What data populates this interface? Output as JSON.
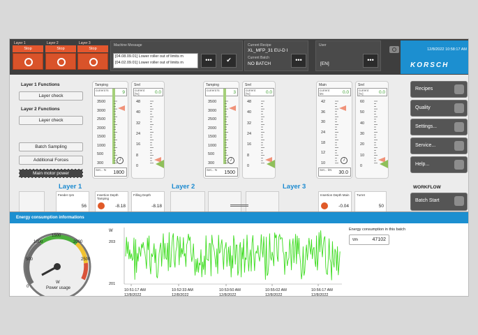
{
  "header": {
    "layers": [
      {
        "label": "Layer 1",
        "stop": "Stop"
      },
      {
        "label": "Layer 2",
        "stop": "Stop"
      },
      {
        "label": "Layer 3",
        "stop": "Stop"
      }
    ],
    "machine_message": {
      "caption": "Machine Message",
      "lines": [
        "[04.08.09.01] Lower roller out of limits m",
        "[04.02.09.01] Lower roller out of limits m"
      ]
    },
    "more_label": "•••",
    "ack_label": "✔",
    "recipe": {
      "caption": "Current Recipe",
      "value": "XL_MFP_31 EU-D I",
      "batch_caption": "Current Batch",
      "batch_value": "NO BATCH"
    },
    "user": {
      "caption": "User",
      "value": "[EN]"
    },
    "datetime": "12/8/2022 10:58:17 AM",
    "brand": "KORSCH"
  },
  "functions": {
    "layer1_title": "Layer 1 Functions",
    "layer1_button": "Layer check",
    "layer2_title": "Layer 2 Functions",
    "layer2_button": "Layer check",
    "batch_sampling": "Batch Sampling",
    "additional_forces": "Additional Forces",
    "main_motor_power": "Main motor power"
  },
  "gauges": [
    {
      "caption": "Tamping",
      "current_label": "current N",
      "current_value": "9",
      "ticks": [
        "3500",
        "3000",
        "2500",
        "2000",
        "1500",
        "1000",
        "500",
        "300"
      ],
      "set_label": "Set... N",
      "set_value": "1800"
    },
    {
      "caption": "Srel",
      "current_label": "current [%]",
      "current_value": "0.0",
      "ticks": [
        "48",
        "40",
        "32",
        "24",
        "16",
        "8",
        "0"
      ]
    },
    {
      "caption": "Tamping",
      "current_label": "current N",
      "current_value": "3",
      "ticks": [
        "3500",
        "3000",
        "2500",
        "2000",
        "1500",
        "1000",
        "500",
        "300"
      ],
      "set_label": "Set... N",
      "set_value": "1500"
    },
    {
      "caption": "Srel",
      "current_label": "current [%]",
      "current_value": "0.0",
      "ticks": [
        "48",
        "40",
        "32",
        "24",
        "16",
        "8",
        "0"
      ]
    },
    {
      "caption": "Main",
      "current_label": "current kN",
      "current_value": "0.0",
      "ticks": [
        "42",
        "36",
        "30",
        "24",
        "18",
        "12",
        "10"
      ],
      "set_label": "Set... kN",
      "set_value": "30.0"
    },
    {
      "caption": "Srel",
      "current_label": "current [%]",
      "current_value": "0.0",
      "ticks": [
        "60",
        "50",
        "40",
        "30",
        "20",
        "10",
        "0"
      ]
    }
  ],
  "menu": [
    "Recipes",
    "Quality",
    "Settings...",
    "Service...",
    "Help..."
  ],
  "workflow": {
    "title": "WORKFLOW",
    "batch_start": "Batch Start"
  },
  "layer_row": {
    "titles": [
      "Layer 1",
      "Layer 2",
      "Layer 3"
    ],
    "cards": [
      {
        "caption": "Feeder rpm",
        "value": "56"
      },
      {
        "caption": "Insertion Depth Tamping",
        "value": "-8.18"
      },
      {
        "caption": "Filling Depth",
        "value": "-8.18"
      },
      {
        "caption": "Insertion Depth Main",
        "value": "-0.04"
      },
      {
        "caption": "Turret",
        "value": "50"
      }
    ]
  },
  "energy": {
    "title": "Energy consumption informations",
    "gauge_ticks": [
      "0",
      "500",
      "1000",
      "1500",
      "2000",
      "2500"
    ],
    "gauge_unit": "W",
    "gauge_label": "Power usage",
    "chart_ylabel": "W",
    "chart_ymax": "203",
    "chart_ymin": "201",
    "time_labels": [
      {
        "t": "10:51:17 AM",
        "d": "12/8/2022"
      },
      {
        "t": "10:52:33 AM",
        "d": "12/8/2022"
      },
      {
        "t": "10:53:50 AM",
        "d": "12/8/2022"
      },
      {
        "t": "10:55:02 AM",
        "d": "12/8/2022"
      },
      {
        "t": "10:56:17 AM",
        "d": "12/8/2022"
      }
    ],
    "consumption_title": "Energy consumption in this batch",
    "consumption_unit": "Wh",
    "consumption_value": "47102",
    "series_color": "#3ddc1f"
  }
}
